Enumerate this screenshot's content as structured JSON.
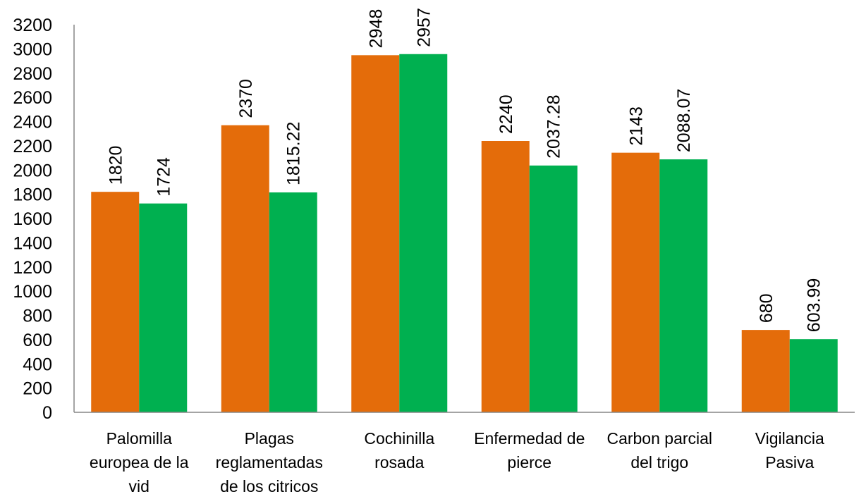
{
  "chart_data": {
    "type": "bar",
    "title": "",
    "xlabel": "",
    "ylabel": "",
    "ylim": [
      0,
      3200
    ],
    "y_ticks": [
      0,
      200,
      400,
      600,
      800,
      1000,
      1200,
      1400,
      1600,
      1800,
      2000,
      2200,
      2400,
      2600,
      2800,
      3000,
      3200
    ],
    "grid": false,
    "legend": "none",
    "categories": [
      [
        "Palomilla",
        "europea de la",
        "vid"
      ],
      [
        "Plagas",
        "reglamentadas",
        "de los citricos"
      ],
      [
        "Cochinilla",
        "rosada"
      ],
      [
        "Enfermedad de",
        "pierce"
      ],
      [
        "Carbon parcial",
        "del trigo"
      ],
      [
        "Vigilancia",
        "Pasiva"
      ]
    ],
    "series": [
      {
        "color": "#E46C0A",
        "values": [
          1820,
          2370,
          2948,
          2240,
          2143,
          680
        ],
        "labels": [
          "1820",
          "2370",
          "2948",
          "2240",
          "2143",
          "680"
        ]
      },
      {
        "color": "#00B050",
        "values": [
          1724,
          1815.22,
          2957,
          2037.28,
          2088.07,
          603.99
        ],
        "labels": [
          "1724",
          "1815.22",
          "2957",
          "2037.28",
          "2088.07",
          "603.99"
        ]
      }
    ]
  }
}
